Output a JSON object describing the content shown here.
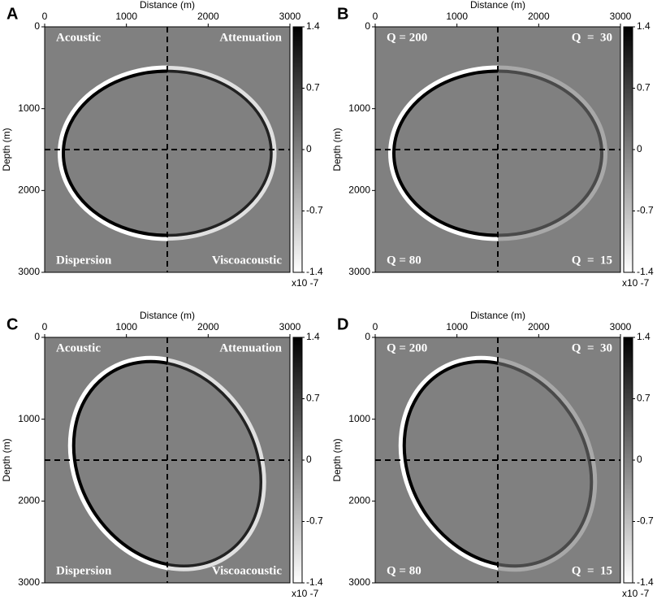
{
  "chart_data": [
    {
      "type": "image",
      "panel": "A",
      "xlabel": "Distance (m)",
      "ylabel": "Depth (m)",
      "xlim": [
        0,
        3000
      ],
      "ylim": [
        3000,
        0
      ],
      "xticks": [
        0,
        1000,
        2000,
        3000
      ],
      "yticks": [
        0,
        1000,
        2000,
        3000
      ],
      "colorbar": {
        "clim": [
          -1.4,
          1.4
        ],
        "ticks": [
          1.4,
          0.7,
          0,
          -0.7,
          -1.4
        ],
        "label": "x10 -7"
      },
      "annotations": [
        "Acoustic",
        "Attenuation",
        "Dispersion",
        "Viscoacoustic"
      ]
    },
    {
      "type": "image",
      "panel": "B",
      "xlabel": "Distance (m)",
      "ylabel": "Depth (m)",
      "xlim": [
        0,
        3000
      ],
      "ylim": [
        3000,
        0
      ],
      "xticks": [
        0,
        1000,
        2000,
        3000
      ],
      "yticks": [
        0,
        1000,
        2000,
        3000
      ],
      "colorbar": {
        "clim": [
          -1.4,
          1.4
        ],
        "ticks": [
          1.4,
          0.7,
          0,
          -0.7,
          -1.4
        ],
        "label": "x10 -7"
      },
      "annotations": [
        "Q = 200",
        "Q  =  30",
        "Q = 80",
        "Q  =  15"
      ]
    },
    {
      "type": "image",
      "panel": "C",
      "xlabel": "Distance (m)",
      "ylabel": "Depth (m)",
      "xlim": [
        0,
        3000
      ],
      "ylim": [
        3000,
        0
      ],
      "xticks": [
        0,
        1000,
        2000,
        3000
      ],
      "yticks": [
        0,
        1000,
        2000,
        3000
      ],
      "colorbar": {
        "clim": [
          -1.4,
          1.4
        ],
        "ticks": [
          1.4,
          0.7,
          0,
          -0.7,
          -1.4
        ],
        "label": "x10 -7"
      },
      "annotations": [
        "Acoustic",
        "Attenuation",
        "Dispersion",
        "Viscoacoustic"
      ]
    },
    {
      "type": "image",
      "panel": "D",
      "xlabel": "Distance (m)",
      "ylabel": "Depth (m)",
      "xlim": [
        0,
        3000
      ],
      "ylim": [
        3000,
        0
      ],
      "xticks": [
        0,
        1000,
        2000,
        3000
      ],
      "yticks": [
        0,
        1000,
        2000,
        3000
      ],
      "colorbar": {
        "clim": [
          -1.4,
          1.4
        ],
        "ticks": [
          1.4,
          0.7,
          0,
          -0.7,
          -1.4
        ],
        "label": "x10 -7"
      },
      "annotations": [
        "Q = 200",
        "Q  =  30",
        "Q = 80",
        "Q  =  15"
      ]
    }
  ]
}
